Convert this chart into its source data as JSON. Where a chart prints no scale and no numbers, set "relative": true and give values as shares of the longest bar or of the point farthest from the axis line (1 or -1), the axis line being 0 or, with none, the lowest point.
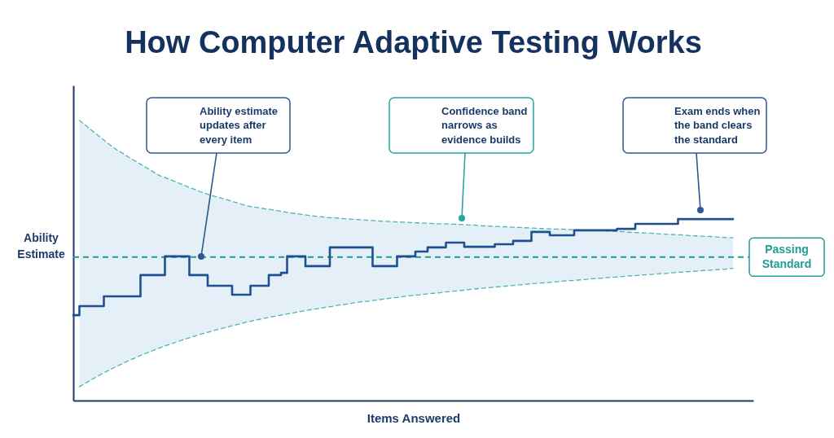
{
  "chart_data": {
    "type": "step",
    "relative": true,
    "title": "How Computer Adaptive Testing Works",
    "xlabel": "Items Answered",
    "ylabel": "Ability Estimate",
    "categories": [
      null,
      null,
      null,
      null,
      null,
      null,
      null,
      null,
      null,
      null,
      null,
      null,
      null,
      null,
      null,
      null,
      null,
      null,
      null,
      null,
      null,
      null,
      null,
      null,
      null,
      null,
      null,
      null,
      null,
      null,
      null,
      null,
      null,
      null,
      null,
      null,
      null,
      null,
      null,
      null,
      null,
      null,
      null,
      null,
      null,
      null,
      null,
      null,
      null,
      null,
      null,
      null,
      null,
      null,
      null,
      null,
      null,
      null,
      null,
      null,
      null,
      null,
      null,
      null,
      null,
      null,
      null,
      null,
      null,
      null,
      null,
      null,
      null,
      null,
      null,
      null,
      null,
      null,
      null,
      null,
      null,
      null,
      null,
      null,
      null,
      null,
      null,
      null,
      null,
      null,
      null,
      null,
      null,
      null,
      null,
      null,
      null,
      null,
      null,
      null,
      null,
      null,
      null,
      null,
      null,
      null,
      null,
      null,
      null
    ],
    "series": [
      {
        "color": "#1e4f91",
        "values": [
          0.305,
          0.337,
          0.337,
          0.337,
          0.337,
          0.372,
          0.372,
          0.372,
          0.372,
          0.372,
          0.372,
          0.448,
          0.448,
          0.448,
          0.448,
          0.515,
          0.515,
          0.515,
          0.515,
          0.448,
          0.448,
          0.448,
          0.41,
          0.41,
          0.41,
          0.41,
          0.378,
          0.378,
          0.378,
          0.41,
          0.41,
          0.41,
          0.448,
          0.448,
          0.456,
          0.515,
          0.515,
          0.515,
          0.48,
          0.48,
          0.48,
          0.48,
          0.547,
          0.547,
          0.547,
          0.547,
          0.547,
          0.547,
          0.547,
          0.48,
          0.48,
          0.48,
          0.48,
          0.515,
          0.515,
          0.515,
          0.532,
          0.532,
          0.547,
          0.547,
          0.547,
          0.564,
          0.564,
          0.564,
          0.549,
          0.549,
          0.549,
          0.549,
          0.549,
          0.558,
          0.558,
          0.558,
          0.57,
          0.57,
          0.57,
          0.602,
          0.602,
          0.602,
          0.59,
          0.59,
          0.59,
          0.59,
          0.608,
          0.608,
          0.608,
          0.608,
          0.608,
          0.608,
          0.608,
          0.613,
          0.613,
          0.613,
          0.631,
          0.631,
          0.631,
          0.631,
          0.631,
          0.631,
          0.631,
          0.648,
          0.648,
          0.648,
          0.648,
          0.648,
          0.648,
          0.648,
          0.648,
          0.648,
          0.648
        ],
        "lower": [
          null,
          0.049,
          0.062,
          0.075,
          0.087,
          0.099,
          0.11,
          0.121,
          0.131,
          0.142,
          0.151,
          0.161,
          0.17,
          0.178,
          0.187,
          0.195,
          0.202,
          0.21,
          0.217,
          0.224,
          0.231,
          0.238,
          0.244,
          0.25,
          0.256,
          0.261,
          0.267,
          0.272,
          0.278,
          0.283,
          0.288,
          0.292,
          0.297,
          0.301,
          0.305,
          0.309,
          0.313,
          0.317,
          0.321,
          0.325,
          0.328,
          0.332,
          0.335,
          0.339,
          0.342,
          0.345,
          0.349,
          0.352,
          0.354,
          0.357,
          0.36,
          0.363,
          0.366,
          0.368,
          0.371,
          0.374,
          0.376,
          0.378,
          0.381,
          0.383,
          0.385,
          0.388,
          0.39,
          0.392,
          0.394,
          0.397,
          0.399,
          0.401,
          0.403,
          0.405,
          0.407,
          0.409,
          0.411,
          0.413,
          0.415,
          0.417,
          0.419,
          0.42,
          0.422,
          0.424,
          0.426,
          0.428,
          0.429,
          0.431,
          0.433,
          0.435,
          0.436,
          0.438,
          0.44,
          0.441,
          0.443,
          0.445,
          0.446,
          0.448,
          0.45,
          0.451,
          0.453,
          0.454,
          0.456,
          0.458,
          0.459,
          0.461,
          0.462,
          0.464,
          0.465,
          0.467,
          0.468,
          0.47,
          0.472
        ],
        "upper": [
          null,
          1.0,
          0.983,
          0.965,
          0.948,
          0.93,
          0.913,
          0.897,
          0.884,
          0.87,
          0.857,
          0.844,
          0.831,
          0.818,
          0.805,
          0.796,
          0.788,
          0.779,
          0.77,
          0.761,
          0.753,
          0.744,
          0.737,
          0.73,
          0.724,
          0.718,
          0.711,
          0.705,
          0.698,
          0.693,
          0.69,
          0.686,
          0.683,
          0.679,
          0.676,
          0.672,
          0.669,
          0.666,
          0.663,
          0.66,
          0.658,
          0.655,
          0.653,
          0.652,
          0.65,
          0.649,
          0.647,
          0.646,
          0.644,
          0.643,
          0.641,
          0.64,
          0.639,
          0.638,
          0.637,
          0.636,
          0.635,
          0.634,
          0.633,
          0.632,
          0.631,
          0.631,
          0.63,
          0.629,
          0.628,
          0.627,
          0.626,
          0.624,
          0.623,
          0.622,
          0.621,
          0.62,
          0.619,
          0.618,
          0.617,
          0.616,
          0.615,
          0.614,
          0.613,
          0.612,
          0.612,
          0.611,
          0.61,
          0.609,
          0.608,
          0.608,
          0.607,
          0.606,
          0.605,
          0.604,
          0.603,
          0.601,
          0.6,
          0.599,
          0.598,
          0.597,
          0.595,
          0.594,
          0.593,
          0.592,
          0.591,
          0.589,
          0.588,
          0.587,
          0.586,
          0.585,
          0.583,
          0.582,
          0.581
        ]
      },
      {
        "type": "line",
        "color": "#4db6b1",
        "line_style": "dashed",
        "values": [
          null,
          1.0,
          0.983,
          0.965,
          0.948,
          0.93,
          0.913,
          0.897,
          0.884,
          0.87,
          0.857,
          0.844,
          0.831,
          0.818,
          0.805,
          0.796,
          0.788,
          0.779,
          0.77,
          0.761,
          0.753,
          0.744,
          0.737,
          0.73,
          0.724,
          0.718,
          0.711,
          0.705,
          0.698,
          0.693,
          0.69,
          0.686,
          0.683,
          0.679,
          0.676,
          0.672,
          0.669,
          0.666,
          0.663,
          0.66,
          0.658,
          0.655,
          0.653,
          0.652,
          0.65,
          0.649,
          0.647,
          0.646,
          0.644,
          0.643,
          0.641,
          0.64,
          0.639,
          0.638,
          0.637,
          0.636,
          0.635,
          0.634,
          0.633,
          0.632,
          0.631,
          0.631,
          0.63,
          0.629,
          0.628,
          0.627,
          0.626,
          0.624,
          0.623,
          0.622,
          0.621,
          0.62,
          0.619,
          0.618,
          0.617,
          0.616,
          0.615,
          0.614,
          0.613,
          0.612,
          0.612,
          0.611,
          0.61,
          0.609,
          0.608,
          0.608,
          0.607,
          0.606,
          0.605,
          0.604,
          0.603,
          0.601,
          0.6,
          0.599,
          0.598,
          0.597,
          0.595,
          0.594,
          0.593,
          0.592,
          0.591,
          0.589,
          0.588,
          0.587,
          0.586,
          0.585,
          0.583,
          0.582,
          0.581
        ]
      },
      {
        "type": "line",
        "color": "#4db6b1",
        "line_style": "dashed",
        "values": [
          null,
          0.049,
          0.062,
          0.075,
          0.087,
          0.099,
          0.11,
          0.121,
          0.131,
          0.142,
          0.151,
          0.161,
          0.17,
          0.178,
          0.187,
          0.195,
          0.202,
          0.21,
          0.217,
          0.224,
          0.231,
          0.238,
          0.244,
          0.25,
          0.256,
          0.261,
          0.267,
          0.272,
          0.278,
          0.283,
          0.288,
          0.292,
          0.297,
          0.301,
          0.305,
          0.309,
          0.313,
          0.317,
          0.321,
          0.325,
          0.328,
          0.332,
          0.335,
          0.339,
          0.342,
          0.345,
          0.349,
          0.352,
          0.354,
          0.357,
          0.36,
          0.363,
          0.366,
          0.368,
          0.371,
          0.374,
          0.376,
          0.378,
          0.381,
          0.383,
          0.385,
          0.388,
          0.39,
          0.392,
          0.394,
          0.397,
          0.399,
          0.401,
          0.403,
          0.405,
          0.407,
          0.409,
          0.411,
          0.413,
          0.415,
          0.417,
          0.419,
          0.42,
          0.422,
          0.424,
          0.426,
          0.428,
          0.429,
          0.431,
          0.433,
          0.435,
          0.436,
          0.438,
          0.44,
          0.441,
          0.443,
          0.445,
          0.446,
          0.448,
          0.45,
          0.451,
          0.453,
          0.454,
          0.456,
          0.458,
          0.459,
          0.461,
          0.462,
          0.464,
          0.465,
          0.467,
          0.468,
          0.47,
          0.472
        ]
      }
    ],
    "ref_lines": [
      {
        "axis": "y",
        "value": 0.512,
        "label": "Passing Standard",
        "color": "#1f9e93",
        "line_style": "dashed"
      }
    ],
    "annotations": [
      "Ability estimate updates after every item",
      "Confidence band narrows as evidence builds",
      "Exam ends when the band clears the standard"
    ]
  }
}
